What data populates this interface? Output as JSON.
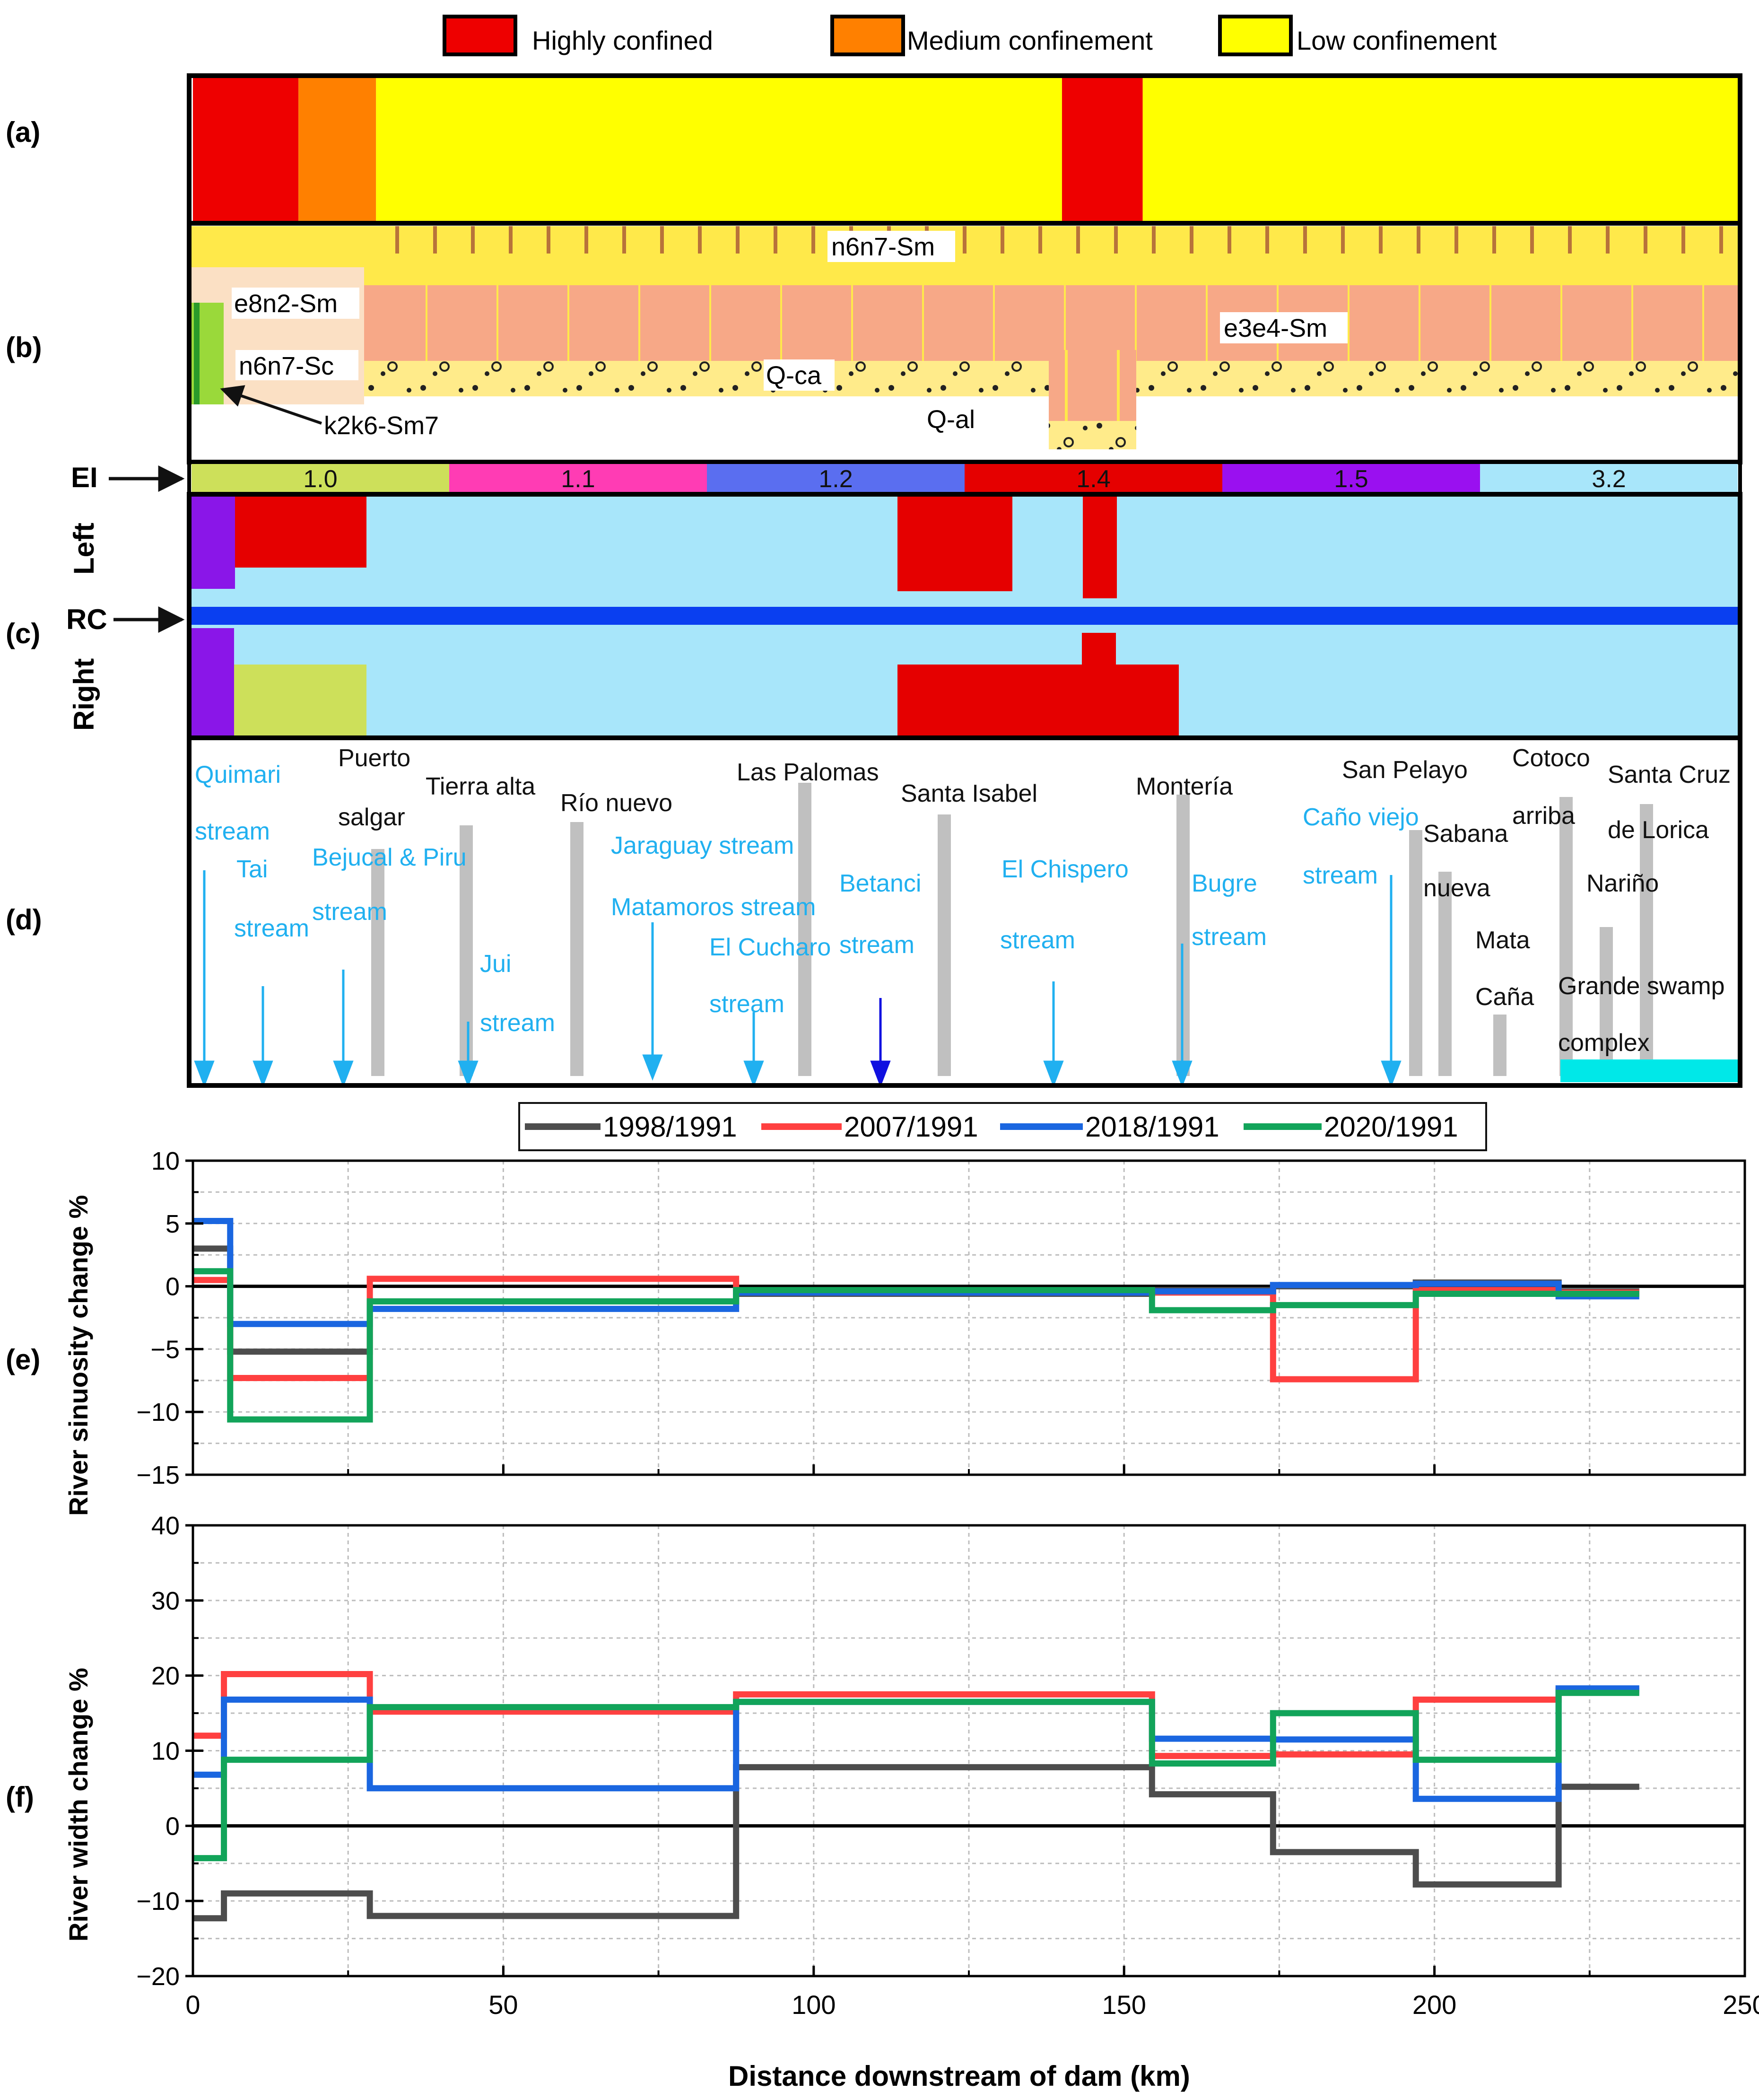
{
  "legend_top": [
    {
      "label": "Highly confined",
      "color": "#ee0000"
    },
    {
      "label": "Medium confinement",
      "color": "#ff8000"
    },
    {
      "label": "Low confinement",
      "color": "#ffff00"
    }
  ],
  "panel_labels": {
    "a": "(a)",
    "b": "(b)",
    "c": "(c)",
    "d": "(d)",
    "e": "(e)",
    "f": "(f)"
  },
  "panel_a": {
    "segments": [
      {
        "from": 0,
        "to": 17,
        "class": "Highly confined",
        "color": "#ee0000"
      },
      {
        "from": 17,
        "to": 29.5,
        "class": "Medium confinement",
        "color": "#ff8000"
      },
      {
        "from": 29.5,
        "to": 140,
        "class": "Low confinement",
        "color": "#ffff00"
      },
      {
        "from": 140,
        "to": 153,
        "class": "Highly confined",
        "color": "#ee0000"
      },
      {
        "from": 153,
        "to": 250,
        "class": "Low confinement",
        "color": "#ffff00"
      }
    ]
  },
  "panel_b": {
    "units": [
      "n6n7-Sm",
      "e8n2-Sm",
      "n6n7-Sc",
      "k2k6-Sm7",
      "Q-ca",
      "Q-al",
      "e3e4-Sm"
    ]
  },
  "panel_ei": {
    "label": "EI",
    "segments": [
      {
        "value": "1.0",
        "color": "#cde05a"
      },
      {
        "value": "1.1",
        "color": "#ff3cb4"
      },
      {
        "value": "1.2",
        "color": "#5a6ef0"
      },
      {
        "value": "1.4",
        "color": "#e50000"
      },
      {
        "value": "1.5",
        "color": "#9a10f0"
      },
      {
        "value": "3.2",
        "color": "#a8e6fa"
      }
    ]
  },
  "panel_c": {
    "left_label": "Left",
    "right_label": "Right",
    "rc_label": "RC"
  },
  "panel_d": {
    "places": [
      {
        "name": "Puerto",
        "line2": "salgar"
      },
      {
        "name": "Tierra alta"
      },
      {
        "name": "Río nuevo"
      },
      {
        "name": "Las Palomas"
      },
      {
        "name": "Santa Isabel"
      },
      {
        "name": "Montería"
      },
      {
        "name": "San Pelayo"
      },
      {
        "name": "Sabana",
        "line2": "nueva"
      },
      {
        "name": "Mata",
        "line2": "Caña"
      },
      {
        "name": "Cotoco",
        "line2": "arriba"
      },
      {
        "name": "Santa Cruz",
        "line2": "de Lorica"
      },
      {
        "name": "Nariño"
      },
      {
        "name": "Grande swamp",
        "line2": "complex"
      }
    ],
    "streams": [
      {
        "name": "Quimari",
        "line2": "stream"
      },
      {
        "name": "Tai",
        "line2": "stream"
      },
      {
        "name": "Bejucal & Piru",
        "line2": "stream"
      },
      {
        "name": "Jui",
        "line2": "stream"
      },
      {
        "name": "Jaraguay stream"
      },
      {
        "name": "Matamoros stream"
      },
      {
        "name": "El Cucharo",
        "line2": "stream"
      },
      {
        "name": "Betanci",
        "line2": "stream"
      },
      {
        "name": "El Chispero",
        "line2": "stream"
      },
      {
        "name": "Bugre",
        "line2": "stream"
      },
      {
        "name": "Caño viejo",
        "line2": "stream"
      }
    ]
  },
  "legend_lines": [
    {
      "name": "1998/1991",
      "color": "#4d4d4d"
    },
    {
      "name": "2007/1991",
      "color": "#ff4040"
    },
    {
      "name": "2018/1991",
      "color": "#1a66e0"
    },
    {
      "name": "2020/1991",
      "color": "#12a45a"
    }
  ],
  "chart_data": [
    {
      "type": "line",
      "title": "",
      "xlabel": "Distance downstream of dam (km)",
      "ylabel": "River sinuosity change %",
      "xlim": [
        0,
        250
      ],
      "ylim": [
        -15,
        10
      ],
      "xticks": [
        0,
        50,
        100,
        150,
        200,
        250
      ],
      "yticks": [
        -15,
        -10,
        -5,
        0,
        5,
        10
      ],
      "series": [
        {
          "name": "1998/1991",
          "color": "#4d4d4d",
          "x": [
            0,
            6,
            6,
            28.5,
            28.5,
            87.5,
            87.5,
            154.5,
            154.5,
            174,
            174,
            197,
            197,
            220,
            220,
            233
          ],
          "y": [
            3,
            3,
            -5.2,
            -5.2,
            -1.2,
            -1.2,
            -0.6,
            -0.6,
            -0.3,
            -0.3,
            0,
            0,
            0.3,
            0.3,
            -0.4,
            -0.4
          ]
        },
        {
          "name": "2007/1991",
          "color": "#ff4040",
          "x": [
            0,
            6,
            6,
            28.5,
            28.5,
            87.5,
            87.5,
            154.5,
            154.5,
            174,
            174,
            197,
            197,
            220,
            220,
            233
          ],
          "y": [
            0.5,
            0.5,
            -7.3,
            -7.3,
            0.6,
            0.6,
            -0.4,
            -0.4,
            -0.5,
            -0.5,
            -7.4,
            -7.4,
            -0.3,
            -0.3,
            -0.5,
            -0.5
          ]
        },
        {
          "name": "2018/1991",
          "color": "#1a66e0",
          "x": [
            0,
            6,
            6,
            28.5,
            28.5,
            87.5,
            87.5,
            154.5,
            154.5,
            174,
            174,
            197,
            197,
            220,
            220,
            233
          ],
          "y": [
            5.2,
            5.2,
            -3,
            -3,
            -1.8,
            -1.8,
            -0.5,
            -0.5,
            -0.4,
            -0.4,
            0.1,
            0.1,
            0.2,
            0.2,
            -0.8,
            -0.8
          ]
        },
        {
          "name": "2020/1991",
          "color": "#12a45a",
          "x": [
            0,
            6,
            6,
            28.5,
            28.5,
            87.5,
            87.5,
            154.5,
            154.5,
            174,
            174,
            197,
            197,
            220,
            220,
            233
          ],
          "y": [
            1.2,
            1.2,
            -10.6,
            -10.6,
            -1.2,
            -1.2,
            -0.3,
            -0.3,
            -1.9,
            -1.9,
            -1.5,
            -1.5,
            -0.6,
            -0.6,
            -0.6,
            -0.6
          ]
        }
      ]
    },
    {
      "type": "line",
      "title": "",
      "xlabel": "Distance downstream of dam (km)",
      "ylabel": "River width change %",
      "xlim": [
        0,
        250
      ],
      "ylim": [
        -20,
        40
      ],
      "xticks": [
        0,
        50,
        100,
        150,
        200,
        250
      ],
      "yticks": [
        -20,
        -10,
        0,
        10,
        20,
        30,
        40
      ],
      "series": [
        {
          "name": "1998/1991",
          "color": "#4d4d4d",
          "x": [
            0,
            5,
            5,
            28.5,
            28.5,
            87.5,
            87.5,
            154.5,
            154.5,
            174,
            174,
            197,
            197,
            220,
            220,
            233
          ],
          "y": [
            -12.3,
            -12.3,
            -9,
            -9,
            -12,
            -12,
            7.8,
            7.8,
            4.2,
            4.2,
            -3.5,
            -3.5,
            -7.8,
            -7.8,
            5.2,
            5.2
          ]
        },
        {
          "name": "2007/1991",
          "color": "#ff4040",
          "x": [
            0,
            5,
            5,
            28.5,
            28.5,
            87.5,
            87.5,
            154.5,
            154.5,
            174,
            174,
            197,
            197,
            220,
            220,
            233
          ],
          "y": [
            12,
            12,
            20.2,
            20.2,
            15.2,
            15.2,
            17.5,
            17.5,
            9.3,
            9.3,
            9.5,
            9.5,
            16.8,
            16.8,
            18,
            18
          ]
        },
        {
          "name": "2018/1991",
          "color": "#1a66e0",
          "x": [
            0,
            5,
            5,
            28.5,
            28.5,
            87.5,
            87.5,
            154.5,
            154.5,
            174,
            174,
            197,
            197,
            220,
            220,
            233
          ],
          "y": [
            6.8,
            6.8,
            16.8,
            16.8,
            5,
            5,
            16.5,
            16.5,
            11.6,
            11.6,
            11.5,
            11.5,
            3.6,
            3.6,
            18.3,
            18.3
          ]
        },
        {
          "name": "2020/1991",
          "color": "#12a45a",
          "x": [
            0,
            5,
            5,
            28.5,
            28.5,
            87.5,
            87.5,
            154.5,
            154.5,
            174,
            174,
            197,
            197,
            220,
            220,
            233
          ],
          "y": [
            -4.3,
            -4.3,
            8.8,
            8.8,
            15.8,
            15.8,
            16.5,
            16.5,
            8.3,
            8.3,
            15,
            15,
            8.8,
            8.8,
            17.7,
            17.7
          ]
        }
      ]
    }
  ]
}
